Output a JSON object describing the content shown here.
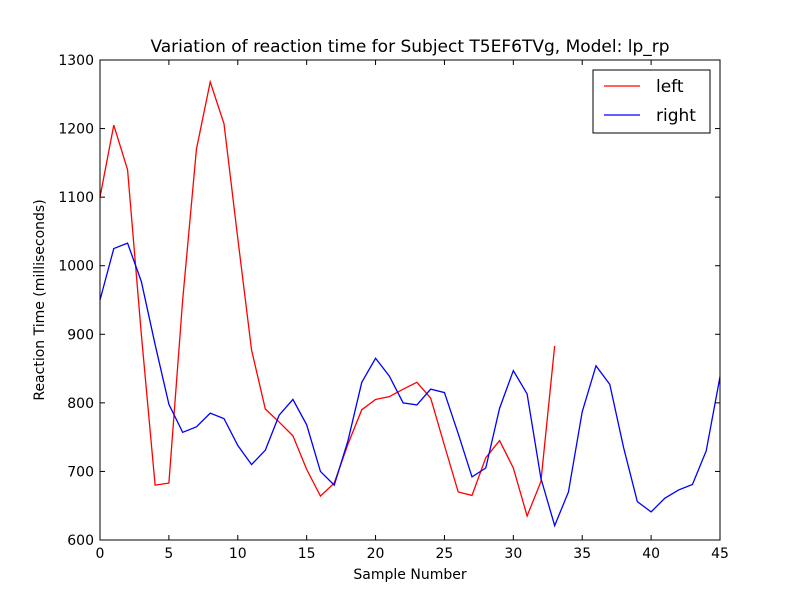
{
  "chart_data": {
    "type": "line",
    "title": "Variation of reaction time for Subject T5EF6TVg, Model: lp_rp",
    "xlabel": "Sample Number",
    "ylabel": "Reaction Time (milliseconds)",
    "xlim": [
      0,
      45
    ],
    "ylim": [
      600,
      1300
    ],
    "xticks": [
      0,
      5,
      10,
      15,
      20,
      25,
      30,
      35,
      40,
      45
    ],
    "yticks": [
      600,
      700,
      800,
      900,
      1000,
      1100,
      1200,
      1300
    ],
    "grid": false,
    "legend_position": "top-right",
    "series": [
      {
        "name": "left",
        "color": "#ff0000",
        "x": [
          0,
          1,
          2,
          3,
          4,
          5,
          6,
          7,
          8,
          9,
          10,
          11,
          12,
          13,
          14,
          15,
          16,
          17,
          18,
          19,
          20,
          21,
          22,
          23,
          24,
          25,
          26,
          27,
          28,
          29,
          30,
          31,
          32,
          33
        ],
        "y": [
          1100,
          1205,
          1140,
          900,
          680,
          683,
          950,
          1170,
          1268,
          1207,
          1040,
          877,
          791,
          772,
          752,
          703,
          664,
          683,
          740,
          790,
          805,
          809,
          820,
          830,
          807,
          738,
          670,
          665,
          720,
          745,
          705,
          635,
          685,
          883
        ]
      },
      {
        "name": "right",
        "color": "#0000ff",
        "x": [
          0,
          1,
          2,
          3,
          4,
          5,
          6,
          7,
          8,
          9,
          10,
          11,
          12,
          13,
          14,
          15,
          16,
          17,
          18,
          19,
          20,
          21,
          22,
          23,
          24,
          25,
          26,
          27,
          28,
          29,
          30,
          31,
          32,
          33,
          34,
          35,
          36,
          37,
          38,
          39,
          40,
          41,
          42,
          43,
          44,
          45
        ],
        "y": [
          950,
          1025,
          1033,
          977,
          885,
          798,
          757,
          765,
          785,
          777,
          738,
          710,
          731,
          782,
          805,
          768,
          700,
          680,
          745,
          830,
          865,
          839,
          800,
          797,
          820,
          815,
          755,
          692,
          705,
          792,
          847,
          813,
          690,
          621,
          670,
          787,
          854,
          827,
          735,
          656,
          641,
          661,
          673,
          681,
          730,
          838
        ]
      }
    ]
  }
}
